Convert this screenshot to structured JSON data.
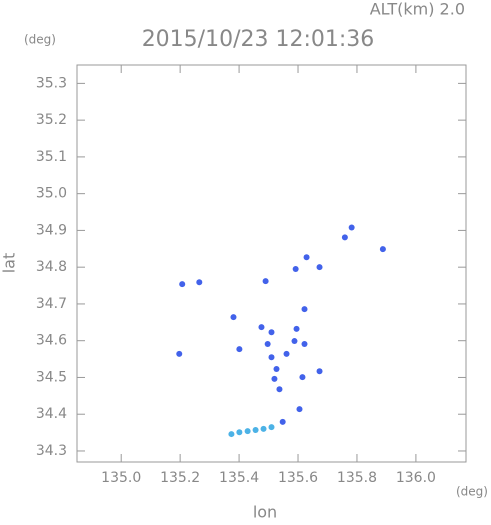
{
  "chart_data": {
    "type": "scatter",
    "title": "2015/10/23 12:01:36",
    "subtitle": "ALT(km) 2.0",
    "x_label": "lon",
    "y_label": "lat",
    "x_unit": "(deg)",
    "y_unit": "(deg)",
    "xlim": [
      134.85,
      136.17
    ],
    "ylim": [
      34.27,
      35.35
    ],
    "xticks": [
      {
        "value": 135.0,
        "label": "135.0"
      },
      135.2,
      135.4,
      135.6,
      135.8,
      {
        "value": 136.0,
        "label": "136.0"
      }
    ],
    "yticks": [
      34.3,
      34.4,
      34.5,
      34.6,
      34.7,
      34.8,
      34.9,
      {
        "value": 35.0,
        "label": "35.0"
      },
      35.1,
      35.2,
      35.3
    ],
    "grid": false,
    "series": [
      {
        "color": "#4262ea",
        "x": [
          135.207,
          135.265,
          135.197,
          135.49,
          135.381,
          135.401,
          135.476,
          135.51,
          135.497,
          135.51,
          135.527,
          135.52,
          135.561,
          135.537,
          135.615,
          135.605,
          135.622,
          135.595,
          135.588,
          135.622,
          135.548,
          135.673,
          135.592,
          135.629,
          135.673,
          135.759,
          135.782,
          135.888
        ],
        "values": [
          34.754,
          34.759,
          34.564,
          34.762,
          34.664,
          34.577,
          34.637,
          34.623,
          34.591,
          34.555,
          34.523,
          34.496,
          34.564,
          34.468,
          34.501,
          34.414,
          34.686,
          34.632,
          34.599,
          34.591,
          34.379,
          34.517,
          34.795,
          34.827,
          34.8,
          34.881,
          34.908,
          34.849
        ]
      },
      {
        "color": "#4cb2e6",
        "x": [
          135.374,
          135.401,
          135.429,
          135.456,
          135.483,
          135.51
        ],
        "values": [
          34.346,
          34.351,
          34.354,
          34.357,
          34.36,
          34.365
        ]
      }
    ]
  }
}
